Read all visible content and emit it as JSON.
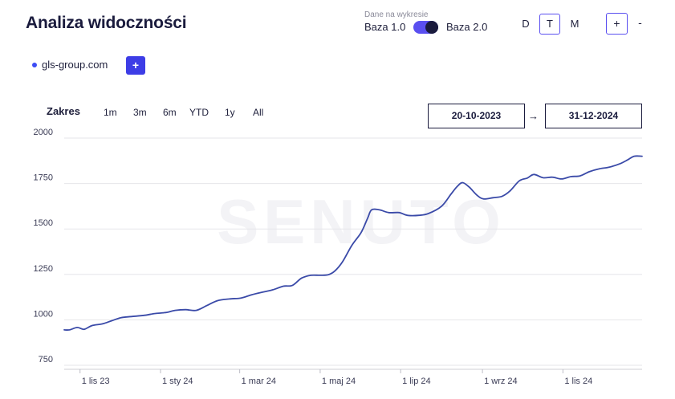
{
  "header": {
    "title": "Analiza widoczności",
    "base_caption": "Dane na wykresie",
    "base_left": "Baza 1.0",
    "base_right": "Baza 2.0",
    "periods": [
      "D",
      "T",
      "M"
    ],
    "active_period": "T",
    "zoom_in": "+",
    "zoom_out": "-"
  },
  "domains": {
    "items": [
      {
        "label": "gls-group.com",
        "color": "#3d4cf5"
      }
    ],
    "add_label": "+"
  },
  "range": {
    "label": "Zakres",
    "options": [
      "1m",
      "3m",
      "6m",
      "YTD",
      "1y",
      "All"
    ],
    "start_date": "20-10-2023",
    "arrow": "→",
    "end_date": "31-12-2024"
  },
  "watermark": "SENUTO",
  "chart_data": {
    "type": "line",
    "series": [
      {
        "name": "gls-group.com",
        "color": "#3a4aa8",
        "points": [
          [
            "2023-10-20",
            945
          ],
          [
            "2023-10-24",
            945
          ],
          [
            "2023-10-30",
            958
          ],
          [
            "2023-11-04",
            948
          ],
          [
            "2023-11-10",
            968
          ],
          [
            "2023-11-18",
            978
          ],
          [
            "2023-11-25",
            995
          ],
          [
            "2023-12-02",
            1012
          ],
          [
            "2023-12-10",
            1018
          ],
          [
            "2023-12-20",
            1025
          ],
          [
            "2023-12-28",
            1035
          ],
          [
            "2024-01-05",
            1040
          ],
          [
            "2024-01-12",
            1052
          ],
          [
            "2024-01-20",
            1056
          ],
          [
            "2024-01-28",
            1052
          ],
          [
            "2024-02-05",
            1078
          ],
          [
            "2024-02-13",
            1105
          ],
          [
            "2024-02-22",
            1115
          ],
          [
            "2024-03-02",
            1120
          ],
          [
            "2024-03-10",
            1138
          ],
          [
            "2024-03-18",
            1152
          ],
          [
            "2024-03-26",
            1165
          ],
          [
            "2024-04-03",
            1185
          ],
          [
            "2024-04-10",
            1190
          ],
          [
            "2024-04-17",
            1230
          ],
          [
            "2024-04-24",
            1245
          ],
          [
            "2024-05-01",
            1245
          ],
          [
            "2024-05-07",
            1248
          ],
          [
            "2024-05-12",
            1268
          ],
          [
            "2024-05-18",
            1320
          ],
          [
            "2024-05-25",
            1410
          ],
          [
            "2024-06-01",
            1480
          ],
          [
            "2024-06-06",
            1560
          ],
          [
            "2024-06-09",
            1605
          ],
          [
            "2024-06-15",
            1605
          ],
          [
            "2024-06-22",
            1590
          ],
          [
            "2024-06-30",
            1590
          ],
          [
            "2024-07-06",
            1575
          ],
          [
            "2024-07-15",
            1575
          ],
          [
            "2024-07-22",
            1585
          ],
          [
            "2024-08-01",
            1625
          ],
          [
            "2024-08-08",
            1690
          ],
          [
            "2024-08-13",
            1735
          ],
          [
            "2024-08-17",
            1755
          ],
          [
            "2024-08-22",
            1730
          ],
          [
            "2024-08-28",
            1685
          ],
          [
            "2024-09-02",
            1665
          ],
          [
            "2024-09-09",
            1672
          ],
          [
            "2024-09-16",
            1680
          ],
          [
            "2024-09-22",
            1710
          ],
          [
            "2024-09-29",
            1765
          ],
          [
            "2024-10-05",
            1780
          ],
          [
            "2024-10-10",
            1800
          ],
          [
            "2024-10-17",
            1782
          ],
          [
            "2024-10-24",
            1785
          ],
          [
            "2024-10-31",
            1775
          ],
          [
            "2024-11-07",
            1788
          ],
          [
            "2024-11-14",
            1792
          ],
          [
            "2024-11-21",
            1815
          ],
          [
            "2024-11-28",
            1830
          ],
          [
            "2024-12-06",
            1840
          ],
          [
            "2024-12-14",
            1858
          ],
          [
            "2024-12-20",
            1880
          ],
          [
            "2024-12-25",
            1900
          ],
          [
            "2024-12-31",
            1900
          ]
        ]
      }
    ],
    "xlim": [
      "2023-10-20",
      "2024-12-31"
    ],
    "x_ticks": [
      {
        "date": "2023-11-01",
        "label": "1 lis 23"
      },
      {
        "date": "2024-01-01",
        "label": "1 sty 24"
      },
      {
        "date": "2024-03-01",
        "label": "1 mar 24"
      },
      {
        "date": "2024-05-01",
        "label": "1 maj 24"
      },
      {
        "date": "2024-07-01",
        "label": "1 lip 24"
      },
      {
        "date": "2024-09-01",
        "label": "1 wrz 24"
      },
      {
        "date": "2024-11-01",
        "label": "1 lis 24"
      }
    ],
    "ylim": [
      750,
      2000
    ],
    "y_ticks": [
      750,
      1000,
      1250,
      1500,
      1750,
      2000
    ],
    "y_tick_labels": [
      "750",
      "1000",
      "1250",
      "1500",
      "1750",
      "2000"
    ],
    "grid": true,
    "legend": false
  }
}
